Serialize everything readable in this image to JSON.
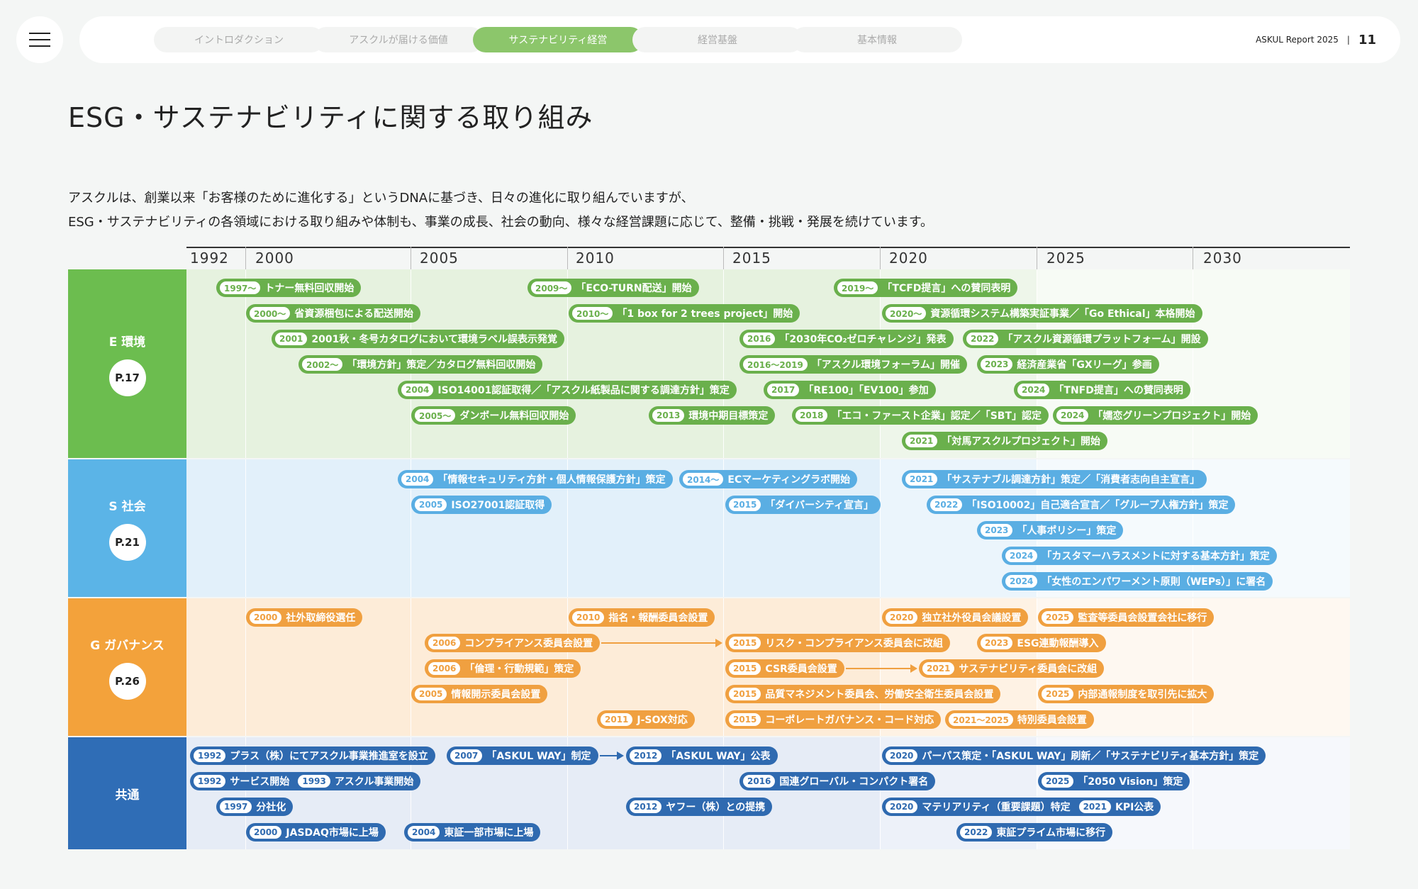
{
  "header": {
    "menu_icon": "hamburger-icon",
    "nav": [
      {
        "label": "イントロダクション",
        "active": false
      },
      {
        "label": "アスクルが届ける価値",
        "active": false
      },
      {
        "label": "サステナビリティ経営",
        "active": true
      },
      {
        "label": "経営基盤",
        "active": false
      },
      {
        "label": "基本情報",
        "active": false
      }
    ],
    "report_name": "ASKUL Report 2025",
    "separator": "|",
    "page_number": "11"
  },
  "title": "ESG・サステナビリティに関する取り組み",
  "intro": [
    "アスクルは、創業以来「お客様のために進化する」というDNAに基づき、日々の進化に取り組んでいますが、",
    "ESG・サステナビリティの各領域における取り組みや体制も、事業の成長、社会の動向、様々な経営課題に応じて、整備・挑戦・発展を続けています。"
  ],
  "timeline": {
    "years": [
      "1992",
      "2000",
      "2005",
      "2010",
      "2015",
      "2020",
      "2025",
      "2030"
    ],
    "sections": [
      {
        "key": "E",
        "label": "E  環境",
        "page": "P.17",
        "colors": {
          "band": "#6cbd4f",
          "pill": "#6ab04c",
          "tint1": "#e6f2df",
          "tint2": "#eef6ea",
          "tint3": "#f7fbf5"
        },
        "rows": [
          [
            {
              "year": "1997〜",
              "text": "トナー無料回収開始"
            },
            {
              "year": "2009〜",
              "text": "「ECO-TURN配送」開始"
            },
            {
              "year": "2019〜",
              "text": "「TCFD提言」への賛同表明"
            }
          ],
          [
            {
              "year": "2000〜",
              "text": "省資源梱包による配送開始"
            },
            {
              "year": "2010〜",
              "text": "「1 box for 2 trees project」開始"
            },
            {
              "year": "2020〜",
              "text": "資源循環システム構築実証事業／「Go Ethical」本格開始"
            }
          ],
          [
            {
              "year": "2001",
              "text": "2001秋・冬号カタログにおいて環境ラベル誤表示発覚"
            },
            {
              "year": "2016",
              "text": "「2030年CO₂ゼロチャレンジ」発表"
            },
            {
              "year": "2022",
              "text": "「アスクル資源循環プラットフォーム」開設"
            }
          ],
          [
            {
              "year": "2002〜",
              "text": "「環境方針」策定／カタログ無料回収開始"
            },
            {
              "year": "2016〜2019",
              "text": "「アスクル環境フォーラム」開催"
            },
            {
              "year": "2023",
              "text": "経済産業省「GXリーグ」参画"
            }
          ],
          [
            {
              "year": "2004",
              "text": "ISO14001認証取得／「アスクル紙製品に関する調達方針」策定"
            },
            {
              "year": "2017",
              "text": "「RE100」「EV100」参加"
            },
            {
              "year": "2024",
              "text": "「TNFD提言」への賛同表明"
            }
          ],
          [
            {
              "year": "2005〜",
              "text": "ダンボール無料回収開始"
            },
            {
              "year": "2013",
              "text": "環境中期目標策定"
            },
            {
              "year": "2018",
              "text": "「エコ・ファースト企業」認定／「SBT」認定"
            },
            {
              "year": "2024",
              "text": "「嬬恋グリーンプロジェクト」開始"
            }
          ],
          [
            {
              "year": "2021",
              "text": "「対馬アスクルプロジェクト」開始"
            }
          ]
        ]
      },
      {
        "key": "S",
        "label": "S  社会",
        "page": "P.21",
        "colors": {
          "band": "#5bb4e7",
          "pill": "#5aaee3",
          "tint1": "#e2f0fa",
          "tint2": "#ebf5fc",
          "tint3": "#f5fafd"
        },
        "rows": [
          [
            {
              "year": "2004",
              "text": "「情報セキュリティ方針・個人情報保護方針」策定"
            },
            {
              "year": "2014〜",
              "text": "ECマーケティングラボ開始"
            },
            {
              "year": "2021",
              "text": "「サステナブル調達方針」策定／「消費者志向自主宣言」"
            }
          ],
          [
            {
              "year": "2005",
              "text": "ISO27001認証取得"
            },
            {
              "year": "2015",
              "text": "「ダイバーシティ宣言」"
            },
            {
              "year": "2022",
              "text": "「ISO10002」自己適合宣言／「グループ人権方針」策定"
            }
          ],
          [
            {
              "year": "2023",
              "text": "「人事ポリシー」策定"
            }
          ],
          [
            {
              "year": "2024",
              "text": "「カスタマーハラスメントに対する基本方針」策定"
            }
          ],
          [
            {
              "year": "2024",
              "text": "「女性のエンパワーメント原則（WEPs）」に署名"
            }
          ]
        ]
      },
      {
        "key": "G",
        "label": "G  ガバナンス",
        "page": "P.26",
        "colors": {
          "band": "#f3a23b",
          "pill": "#f0a040",
          "tint1": "#fdecd8",
          "tint2": "#fef2e4",
          "tint3": "#fef8f1"
        },
        "rows": [
          [
            {
              "year": "2000",
              "text": "社外取締役選任"
            },
            {
              "year": "2010",
              "text": "指名・報酬委員会設置"
            },
            {
              "year": "2020",
              "text": "独立社外役員会議設置"
            },
            {
              "year": "2025",
              "text": "監査等委員会設置会社に移行"
            }
          ],
          [
            {
              "year": "2006",
              "text": "コンプライアンス委員会設置"
            },
            {
              "year": "2015",
              "text": "リスク・コンプライアンス委員会に改組"
            },
            {
              "year": "2023",
              "text": "ESG連動報酬導入"
            }
          ],
          [
            {
              "year": "2006",
              "text": "「倫理・行動規範」策定"
            },
            {
              "year": "2015",
              "text": "CSR委員会設置"
            },
            {
              "year": "2021",
              "text": "サステナビリティ委員会に改組"
            }
          ],
          [
            {
              "year": "2005",
              "text": "情報開示委員会設置"
            },
            {
              "year": "2015",
              "text": "品質マネジメント委員会、労働安全衛生委員会設置"
            },
            {
              "year": "2025",
              "text": "内部通報制度を取引先に拡大"
            }
          ],
          [
            {
              "year": "2011",
              "text": "J-SOX対応"
            },
            {
              "year": "2015",
              "text": "コーポレートガバナンス・コード対応"
            },
            {
              "year": "2021〜2025",
              "text": "特別委員会設置"
            }
          ]
        ]
      },
      {
        "key": "C",
        "label": "共通",
        "page": "",
        "colors": {
          "band": "#2f6db6",
          "pill": "#2f6ab0",
          "tint1": "#e6ecf6",
          "tint2": "#edf1f9",
          "tint3": "#f6f8fc"
        },
        "rows": [
          [
            {
              "year": "1992",
              "text": "プラス（株）にてアスクル事業推進室を設立"
            },
            {
              "year": "2007",
              "text": "「ASKUL WAY」制定"
            },
            {
              "year": "2012",
              "text": "「ASKUL WAY」公表"
            },
            {
              "year": "2020",
              "text": "パーパス策定・「ASKUL WAY」刷新／「サステナビリティ基本方針」策定"
            }
          ],
          [
            {
              "year": "1992",
              "text": "サービス開始",
              "year2": "1993",
              "text2": "アスクル事業開始"
            },
            {
              "year": "2016",
              "text": "国連グローバル・コンパクト署名"
            },
            {
              "year": "2025",
              "text": "「2050 Vision」策定"
            }
          ],
          [
            {
              "year": "1997",
              "text": "分社化"
            },
            {
              "year": "2012",
              "text": "ヤフー（株）との提携"
            },
            {
              "year": "2020",
              "text": "マテリアリティ（重要課題）特定",
              "year2": "2021",
              "text2": "KPI公表"
            }
          ],
          [
            {
              "year": "2000",
              "text": "JASDAQ市場に上場"
            },
            {
              "year": "2004",
              "text": "東証一部市場に上場"
            },
            {
              "year": "2022",
              "text": "東証プライム市場に移行"
            }
          ]
        ]
      }
    ]
  }
}
